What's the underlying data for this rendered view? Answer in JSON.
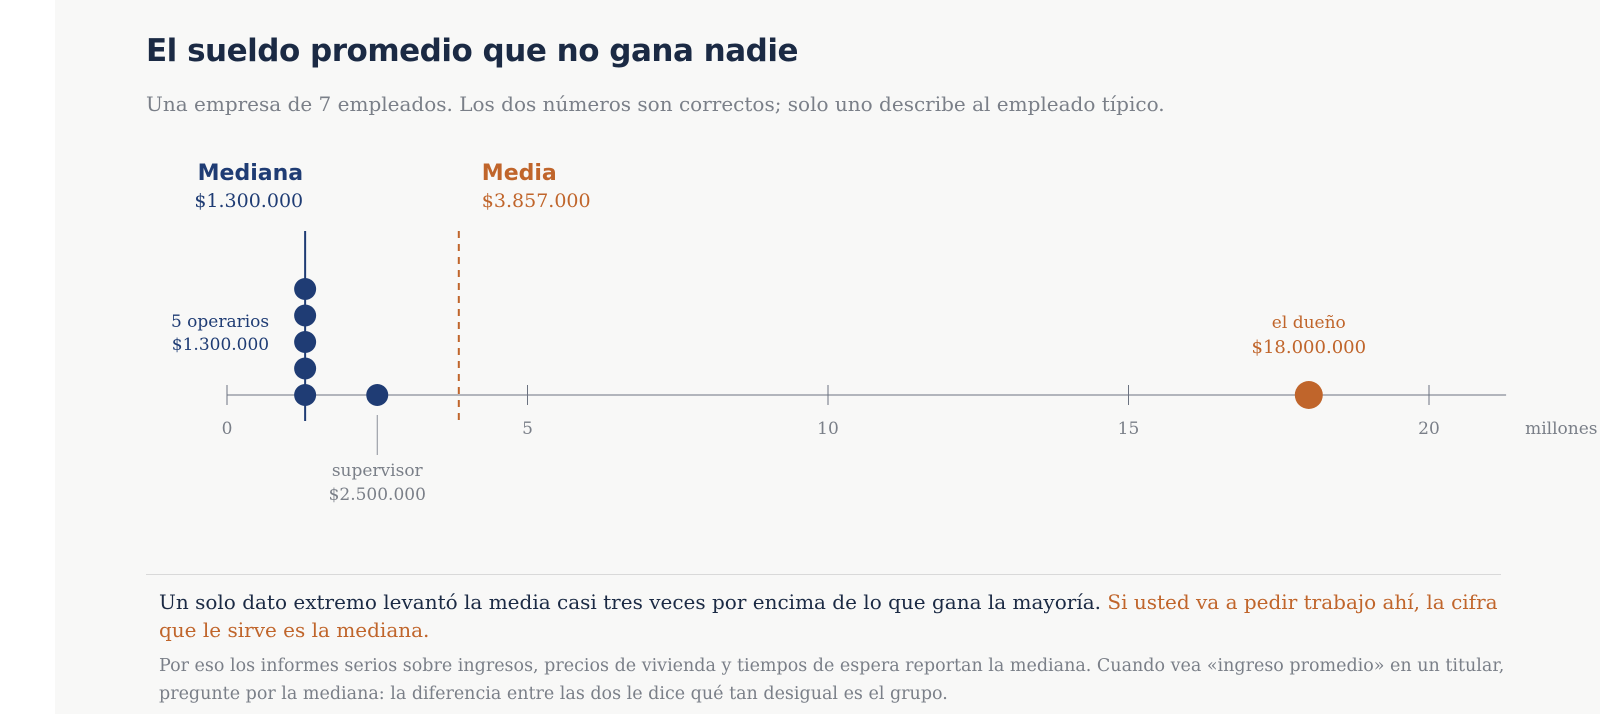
{
  "header": {
    "title": "El sueldo promedio que no gana nadie",
    "subtitle": "Una empresa de 7 empleados. Los dos números son correctos; solo uno describe al empleado típico."
  },
  "chart_data": {
    "type": "scatter",
    "x_unit_label": "millones de pesos",
    "xlim": [
      0,
      21
    ],
    "x_ticks": [
      0,
      5,
      10,
      15,
      20
    ],
    "points": [
      {
        "x": 1.3,
        "stack": 0,
        "group": "operarios"
      },
      {
        "x": 1.3,
        "stack": 1,
        "group": "operarios"
      },
      {
        "x": 1.3,
        "stack": 2,
        "group": "operarios"
      },
      {
        "x": 1.3,
        "stack": 3,
        "group": "operarios"
      },
      {
        "x": 1.3,
        "stack": 4,
        "group": "operarios"
      },
      {
        "x": 2.5,
        "stack": 0,
        "group": "supervisor"
      },
      {
        "x": 18.0,
        "stack": 0,
        "group": "dueno"
      }
    ],
    "reference_lines": [
      {
        "name": "Mediana",
        "value_label": "$1.300.000",
        "x": 1.3,
        "style": "solid",
        "color": "#1f3c74"
      },
      {
        "name": "Media",
        "value_label": "$3.857.000",
        "x": 3.857,
        "style": "dashed",
        "color": "#c0652b"
      }
    ],
    "annotations": [
      {
        "lines": [
          "5 operarios",
          "$1.300.000"
        ],
        "color": "#1f3c74"
      },
      {
        "lines": [
          "supervisor",
          "$2.500.000"
        ],
        "color": "#7a7f88"
      },
      {
        "lines": [
          "el dueño",
          "$18.000.000"
        ],
        "color": "#c0652b"
      }
    ],
    "colors": {
      "median": "#1f3c74",
      "mean": "#c0652b",
      "axis": "#6b7280"
    }
  },
  "takeaway": {
    "main": "Un solo dato extremo levantó la media casi tres veces por encima de lo que gana la mayoría.",
    "highlight": "Si usted va a pedir trabajo ahí, la cifra que le sirve es la mediana."
  },
  "note": "Por eso los informes serios sobre ingresos, precios de vivienda y tiempos de espera reportan la mediana. Cuando vea «ingreso promedio» en un titular, pregunte por la mediana: la diferencia entre las dos le dice qué tan desigual es el grupo."
}
